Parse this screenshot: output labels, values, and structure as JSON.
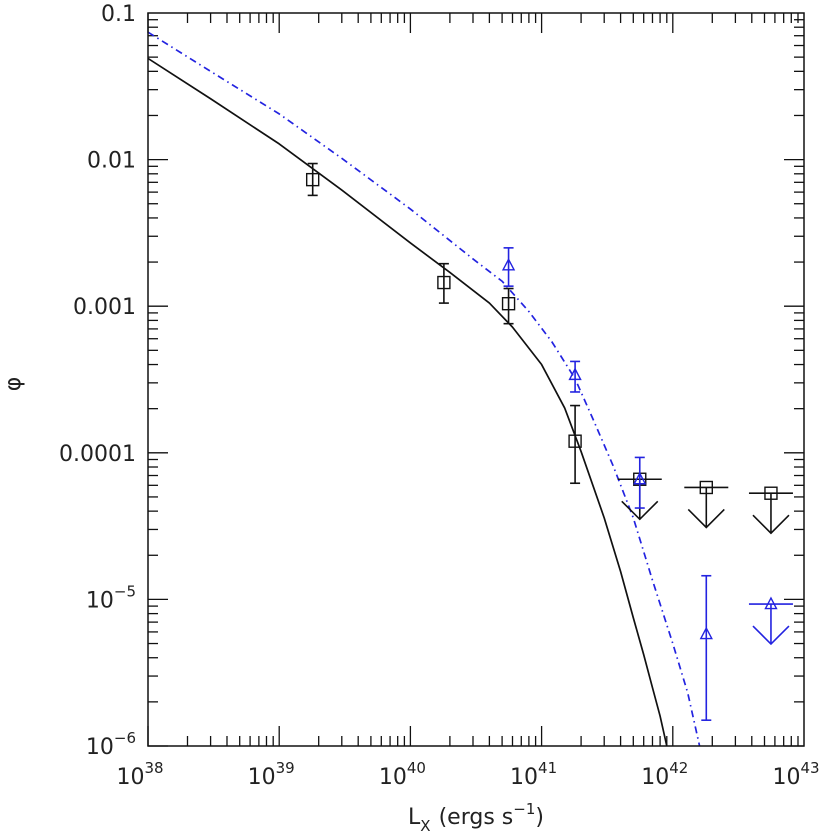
{
  "colors": {
    "black": "#111111",
    "blue": "#2323e0"
  },
  "chart_data": {
    "type": "scatter",
    "title": "",
    "xlabel": "L",
    "xlabel_sub": "X",
    "xlabel_units_prefix": "(ergs s",
    "xlabel_units_exp": "−1",
    "xlabel_units_suffix": ")",
    "ylabel": "φ",
    "x_scale": "log",
    "y_scale": "log",
    "xlim": [
      1e+38,
      1e+43
    ],
    "ylim": [
      1e-06,
      0.1
    ],
    "grid": false,
    "x_ticks": [
      {
        "value": 1e+38,
        "base": "10",
        "exp": "38"
      },
      {
        "value": 1e+39,
        "base": "10",
        "exp": "39"
      },
      {
        "value": 1e+40,
        "base": "10",
        "exp": "40"
      },
      {
        "value": 1e+41,
        "base": "10",
        "exp": "41"
      },
      {
        "value": 1e+42,
        "base": "10",
        "exp": "42"
      },
      {
        "value": 1e+43,
        "base": "10",
        "exp": "43"
      }
    ],
    "y_ticks": [
      {
        "value": 0.1,
        "text": "0.1"
      },
      {
        "value": 0.01,
        "text": "0.01"
      },
      {
        "value": 0.001,
        "text": "0.001"
      },
      {
        "value": 0.0001,
        "text": "0.0001"
      },
      {
        "value": 1e-05,
        "base": "10",
        "exp": "−5"
      },
      {
        "value": 1e-06,
        "base": "10",
        "exp": "−6"
      }
    ],
    "series": [
      {
        "marker": "square",
        "color": "#111111",
        "points": [
          {
            "x": 1.8e+39,
            "y": 0.0073,
            "ylo": 0.0057,
            "yhi": 0.0094
          },
          {
            "x": 1.8e+40,
            "y": 0.00145,
            "ylo": 0.00105,
            "yhi": 0.00195
          },
          {
            "x": 5.6e+40,
            "y": 0.00104,
            "ylo": 0.00076,
            "yhi": 0.00132
          },
          {
            "x": 1.8e+41,
            "y": 0.00012,
            "ylo": 6.2e-05,
            "yhi": 0.00021
          }
        ],
        "upper_limits": [
          {
            "x": 5.6e+41,
            "y": 6.6e-05
          },
          {
            "x": 1.8e+42,
            "y": 5.8e-05
          },
          {
            "x": 5.6e+42,
            "y": 5.3e-05
          }
        ]
      },
      {
        "marker": "triangle",
        "color": "#2323e0",
        "points": [
          {
            "x": 5.6e+40,
            "y": 0.0019,
            "ylo": 0.00137,
            "yhi": 0.0025
          },
          {
            "x": 1.8e+41,
            "y": 0.00034,
            "ylo": 0.00026,
            "yhi": 0.00042
          },
          {
            "x": 5.6e+41,
            "y": 6.6e-05,
            "ylo": 4.2e-05,
            "yhi": 9.3e-05
          },
          {
            "x": 1.8e+42,
            "y": 5.8e-06,
            "ylo": 1.5e-06,
            "yhi": 1.45e-05
          }
        ],
        "upper_limits": [
          {
            "x": 5.6e+42,
            "y": 9.3e-06
          }
        ]
      }
    ],
    "model_curves": [
      {
        "style": "solid",
        "color": "#111111",
        "points": [
          [
            1e+38,
            0.049
          ],
          [
            3e+38,
            0.026
          ],
          [
            1e+39,
            0.0128
          ],
          [
            3e+39,
            0.0062
          ],
          [
            1e+40,
            0.0027
          ],
          [
            2e+40,
            0.0017
          ],
          [
            4e+40,
            0.00105
          ],
          [
            6e+40,
            0.00072
          ],
          [
            1e+41,
            0.0004
          ],
          [
            1.5e+41,
            0.000202
          ],
          [
            2e+41,
            0.000102
          ],
          [
            3e+41,
            3.6e-05
          ],
          [
            4e+41,
            1.55e-05
          ],
          [
            5e+41,
            7.5e-06
          ],
          [
            6e+41,
            4.2e-06
          ],
          [
            7e+41,
            2.5e-06
          ],
          [
            8e+41,
            1.6e-06
          ],
          [
            9e+41,
            1e-06
          ]
        ]
      },
      {
        "style": "dash-dot",
        "color": "#2323e0",
        "points": [
          [
            1e+38,
            0.074
          ],
          [
            3e+38,
            0.04
          ],
          [
            1e+39,
            0.0205
          ],
          [
            3e+39,
            0.0102
          ],
          [
            1e+40,
            0.0046
          ],
          [
            3e+40,
            0.0021
          ],
          [
            5e+40,
            0.00148
          ],
          [
            8e+40,
            0.00092
          ],
          [
            1.2e+41,
            0.00057
          ],
          [
            1.8e+41,
            0.00032
          ],
          [
            2.5e+41,
            0.000165
          ],
          [
            3.5e+41,
            8.2e-05
          ],
          [
            5e+41,
            3.6e-05
          ],
          [
            7e+41,
            1.35e-05
          ],
          [
            1e+42,
            5e-06
          ],
          [
            1.3e+42,
            2.3e-06
          ],
          [
            1.6e+42,
            1e-06
          ]
        ]
      }
    ]
  }
}
